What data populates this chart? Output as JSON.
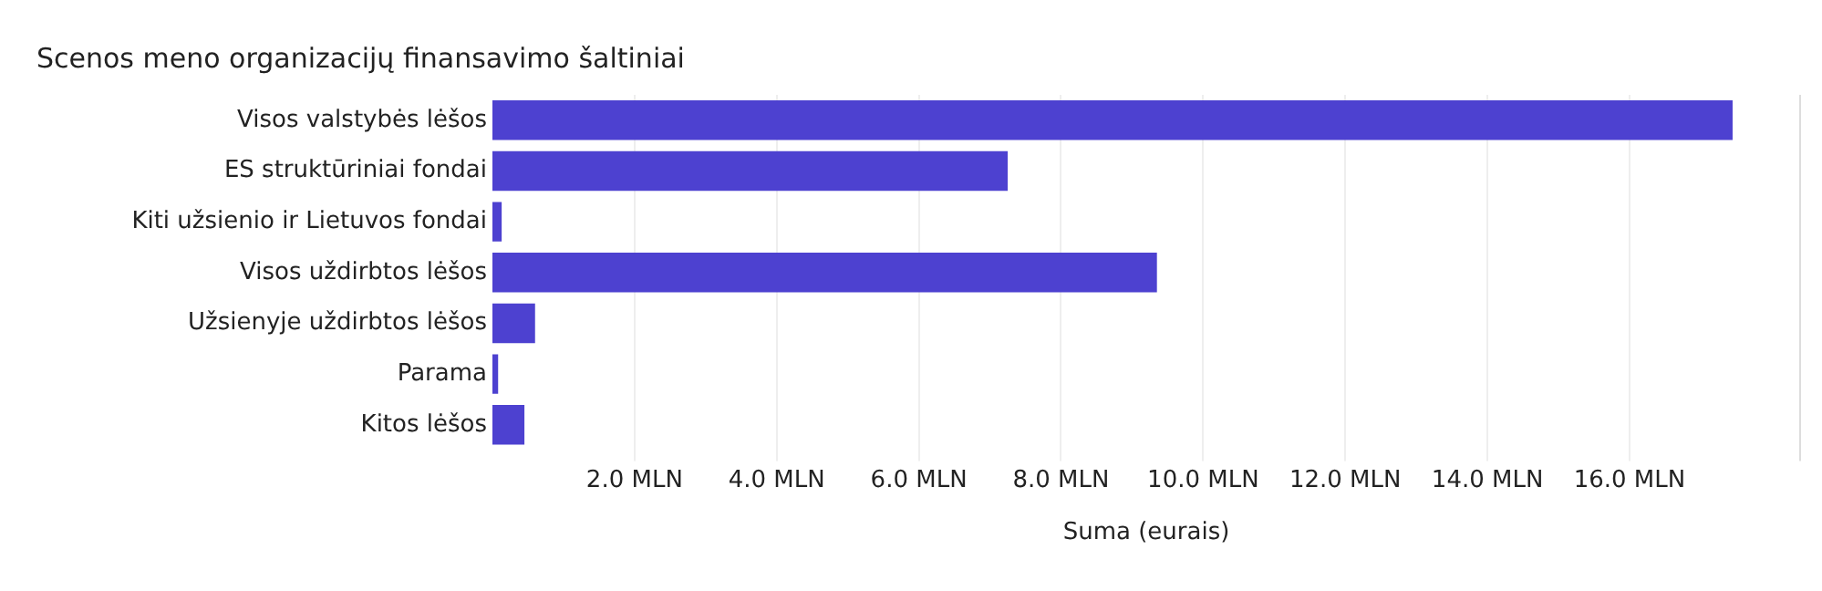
{
  "chart_data": {
    "type": "bar",
    "orientation": "horizontal",
    "title": "Scenos meno organizacijų finansavimo šaltiniai",
    "xlabel": "Suma (eurais)",
    "categories": [
      "Visos valstybės lėšos",
      "ES struktūriniai fondai",
      "Kiti užsienio ir Lietuvos fondai",
      "Visos uždirbtos lėšos",
      "Užsienyje uždirbtos lėšos",
      "Parama",
      "Kitos lėšos"
    ],
    "values": [
      17.45,
      7.25,
      0.13,
      9.35,
      0.6,
      0.08,
      0.45
    ],
    "color": "#4d41d0",
    "xlim": [
      0,
      18.4
    ],
    "xticks": [
      {
        "value": 2,
        "label": "2.0 MLN"
      },
      {
        "value": 4,
        "label": "4.0 MLN"
      },
      {
        "value": 6,
        "label": "6.0 MLN"
      },
      {
        "value": 8,
        "label": "8.0 MLN"
      },
      {
        "value": 10,
        "label": "10.0 MLN"
      },
      {
        "value": 12,
        "label": "12.0 MLN"
      },
      {
        "value": 14,
        "label": "14.0 MLN"
      },
      {
        "value": 16,
        "label": "16.0 MLN"
      }
    ],
    "grid": "x"
  }
}
